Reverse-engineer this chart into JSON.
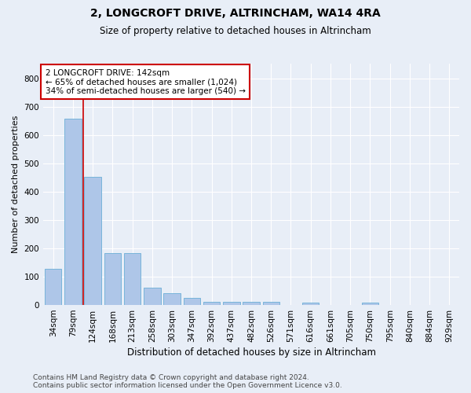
{
  "title": "2, LONGCROFT DRIVE, ALTRINCHAM, WA14 4RA",
  "subtitle": "Size of property relative to detached houses in Altrincham",
  "xlabel": "Distribution of detached houses by size in Altrincham",
  "ylabel": "Number of detached properties",
  "categories": [
    "34sqm",
    "79sqm",
    "124sqm",
    "168sqm",
    "213sqm",
    "258sqm",
    "303sqm",
    "347sqm",
    "392sqm",
    "437sqm",
    "482sqm",
    "526sqm",
    "571sqm",
    "616sqm",
    "661sqm",
    "705sqm",
    "750sqm",
    "795sqm",
    "840sqm",
    "884sqm",
    "929sqm"
  ],
  "values": [
    128,
    658,
    452,
    183,
    183,
    60,
    43,
    25,
    12,
    12,
    12,
    10,
    0,
    8,
    0,
    0,
    8,
    0,
    0,
    0,
    0
  ],
  "bar_color": "#aec6e8",
  "bar_edge_color": "#6baed6",
  "background_color": "#e8eef7",
  "grid_color": "#ffffff",
  "vline_x": 1.5,
  "vline_color": "#cc0000",
  "annotation_text": "2 LONGCROFT DRIVE: 142sqm\n← 65% of detached houses are smaller (1,024)\n34% of semi-detached houses are larger (540) →",
  "annotation_box_color": "#ffffff",
  "annotation_box_edge": "#cc0000",
  "footer_line1": "Contains HM Land Registry data © Crown copyright and database right 2024.",
  "footer_line2": "Contains public sector information licensed under the Open Government Licence v3.0.",
  "ylim": [
    0,
    850
  ],
  "yticks": [
    0,
    100,
    200,
    300,
    400,
    500,
    600,
    700,
    800
  ],
  "figsize": [
    6.0,
    5.0
  ],
  "dpi": 100,
  "title_fontsize": 10,
  "subtitle_fontsize": 8.5,
  "ylabel_fontsize": 8,
  "xlabel_fontsize": 8.5,
  "tick_fontsize": 7.5,
  "annotation_fontsize": 7.5,
  "footer_fontsize": 6.5
}
